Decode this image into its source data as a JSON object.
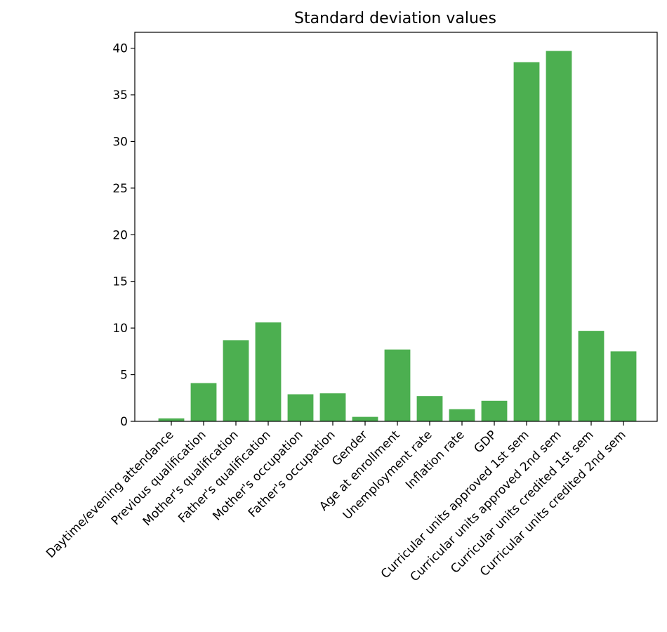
{
  "chart_data": {
    "type": "bar",
    "title": "Standard deviation values",
    "xlabel": "",
    "ylabel": "",
    "categories": [
      "Daytime/evening attendance",
      "Previous qualification",
      "Mother's qualification",
      "Father's qualification",
      "Mother's occupation",
      "Father's occupation",
      "Gender",
      "Age at enrollment",
      "Unemployment rate",
      "Inflation rate",
      "GDP",
      "Curricular units approved 1st sem",
      "Curricular units approved 2nd sem",
      "Curricular units credited 1st sem",
      "Curricular units credited 2nd sem"
    ],
    "values": [
      0.32,
      4.1,
      8.7,
      10.6,
      2.9,
      3.0,
      0.48,
      7.7,
      2.7,
      1.3,
      2.2,
      38.5,
      39.7,
      9.7,
      7.5
    ],
    "ylim": [
      0,
      41.7
    ],
    "yticks": [
      0,
      5,
      10,
      15,
      20,
      25,
      30,
      35,
      40
    ],
    "bar_color": "#4caf50",
    "grid": false,
    "legend": "none"
  }
}
